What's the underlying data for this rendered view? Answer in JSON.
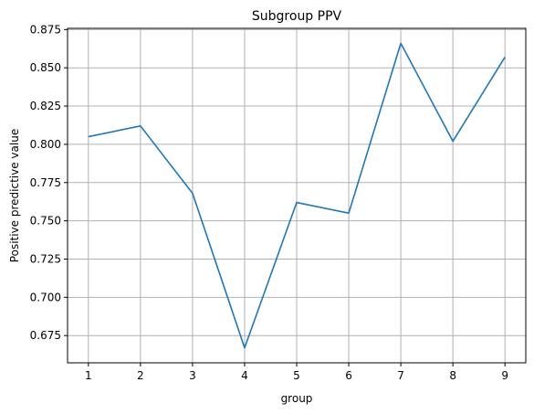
{
  "chart_data": {
    "type": "line",
    "title": "Subgroup PPV",
    "xlabel": "group",
    "ylabel": "Positive predictive value",
    "x": [
      1,
      2,
      3,
      4,
      5,
      6,
      7,
      8,
      9
    ],
    "series": [
      {
        "values": [
          0.805,
          0.812,
          0.768,
          0.667,
          0.762,
          0.755,
          0.866,
          0.802,
          0.857
        ],
        "color": "#1f77b4"
      }
    ],
    "xlim": [
      0.6,
      9.4
    ],
    "ylim": [
      0.6572,
      0.8758
    ],
    "xticks": [
      "1",
      "2",
      "3",
      "4",
      "5",
      "6",
      "7",
      "8",
      "9"
    ],
    "yticks": [
      "0.675",
      "0.700",
      "0.725",
      "0.750",
      "0.775",
      "0.800",
      "0.825",
      "0.850",
      "0.875"
    ],
    "grid": true,
    "grid_color": "#b0b0b0"
  }
}
